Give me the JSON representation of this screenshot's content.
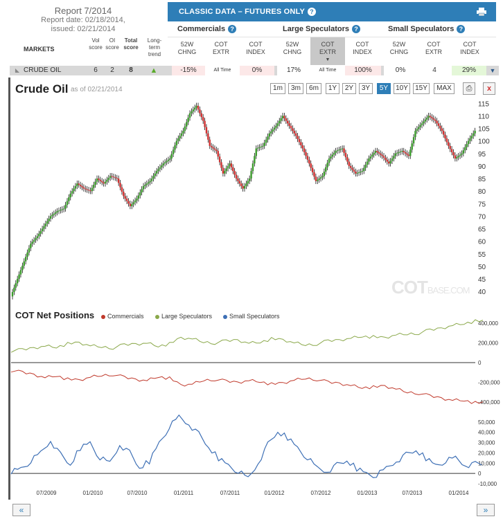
{
  "report": {
    "title": "Report 7/2014",
    "date_line": "Report date: 02/18/2014,",
    "issued_line": "issued: 02/21/2014"
  },
  "header": {
    "classic_title": "CLASSIC DATA – FUTURES ONLY",
    "help_icon": "?"
  },
  "groups": [
    "Commercials",
    "Large Speculators",
    "Small Speculators"
  ],
  "columns": {
    "markets": "MARKETS",
    "vol": [
      "Vol",
      "score"
    ],
    "oi": [
      "OI",
      "score"
    ],
    "total": [
      "Total",
      "score"
    ],
    "trend": [
      "Long-",
      "term",
      "trend"
    ],
    "chng": [
      "52W",
      "CHNG"
    ],
    "extr": [
      "COT",
      "EXTR"
    ],
    "index": [
      "COT",
      "INDEX"
    ]
  },
  "market_row": {
    "name": "CRUDE OIL",
    "vol": "6",
    "oi": "2",
    "total": "8",
    "comm_chng": "-15%",
    "comm_extr": "All Time",
    "comm_index": "0%",
    "ls_chng": "17%",
    "ls_extr": "All Time",
    "ls_index": "100%",
    "ss_chng": "0%",
    "ss_extr": "4",
    "ss_index": "29%"
  },
  "chart": {
    "title": "Crude Oil",
    "asof": "as of 02/21/2014",
    "ranges": [
      "1m",
      "3m",
      "6m",
      "1Y",
      "2Y",
      "3Y",
      "5Y",
      "10Y",
      "15Y",
      "MAX"
    ],
    "active_range": "5Y",
    "close": "x",
    "watermark": "COT",
    "watermark_small": "BASE.COM"
  },
  "cot": {
    "title": "COT Net Positions",
    "legend": [
      "Commercials",
      "Large Speculators",
      "Small Speculators"
    ]
  },
  "colors": {
    "commercials": "#c0392b",
    "large": "#8aa84a",
    "small": "#3d6fb5",
    "up": "#3a9a2a",
    "down": "#d03030"
  },
  "nav": {
    "back": "«",
    "fwd": "»"
  },
  "chart_data": [
    {
      "type": "line",
      "title": "Crude Oil",
      "y_ticks": [
        "40",
        "45",
        "50",
        "55",
        "60",
        "65",
        "70",
        "75",
        "80",
        "85",
        "90",
        "95",
        "100",
        "105",
        "110",
        "115"
      ],
      "ylim": [
        37,
        117
      ],
      "x_labels": [
        "07/2009",
        "01/2010",
        "07/2010",
        "01/2011",
        "07/2011",
        "01/2012",
        "07/2012",
        "01/2013",
        "07/2013",
        "01/2014"
      ],
      "series": [
        {
          "values": [
            38,
            45,
            52,
            59,
            62,
            66,
            70,
            72,
            73,
            79,
            83,
            81,
            80,
            85,
            83,
            86,
            85,
            78,
            74,
            77,
            82,
            84,
            88,
            91,
            93,
            100,
            104,
            111,
            114,
            108,
            98,
            96,
            87,
            91,
            85,
            81,
            85,
            97,
            98,
            103,
            106,
            110,
            106,
            102,
            97,
            91,
            84,
            86,
            93,
            96,
            97,
            90,
            87,
            88,
            93,
            96,
            94,
            91,
            95,
            96,
            94,
            104,
            107,
            110,
            108,
            104,
            98,
            93,
            95,
            100,
            104
          ]
        }
      ]
    },
    {
      "type": "line",
      "title": "COT Net Positions",
      "y_ticks": [
        "400,000",
        "200,000",
        "0",
        "-200,000",
        "-400,000"
      ],
      "ylim": [
        -450000,
        450000
      ],
      "series": [
        {
          "name": "Large Speculators",
          "values": [
            120000,
            130000,
            150000,
            170000,
            160000,
            190000,
            200000,
            170000,
            160000,
            150000,
            180000,
            190000,
            200000,
            170000,
            190000,
            250000,
            240000,
            210000,
            200000,
            220000,
            230000,
            200000,
            210000,
            240000,
            230000,
            200000,
            180000,
            190000,
            220000,
            230000,
            250000,
            270000,
            260000,
            250000,
            280000,
            290000,
            300000,
            330000,
            350000,
            380000,
            400000,
            420000
          ]
        },
        {
          "name": "Commercials",
          "values": [
            -80000,
            -100000,
            -120000,
            -150000,
            -130000,
            -170000,
            -180000,
            -150000,
            -130000,
            -120000,
            -150000,
            -170000,
            -180000,
            -140000,
            -160000,
            -230000,
            -220000,
            -180000,
            -170000,
            -190000,
            -200000,
            -180000,
            -190000,
            -220000,
            -210000,
            -180000,
            -160000,
            -170000,
            -200000,
            -210000,
            -230000,
            -250000,
            -250000,
            -240000,
            -270000,
            -300000,
            -310000,
            -340000,
            -360000,
            -380000,
            -380000,
            -410000
          ]
        }
      ]
    },
    {
      "type": "line",
      "title": "Small Speculators",
      "y_ticks": [
        "50,000",
        "40,000",
        "30,000",
        "20,000",
        "10,000",
        "0",
        "-10,000"
      ],
      "ylim": [
        -12000,
        58000
      ],
      "series": [
        {
          "name": "Small Speculators",
          "values": [
            2000,
            5000,
            12000,
            20000,
            32000,
            18000,
            8000,
            25000,
            30000,
            15000,
            10000,
            28000,
            20000,
            5000,
            12000,
            30000,
            45000,
            55000,
            48000,
            38000,
            25000,
            15000,
            8000,
            2000,
            -5000,
            10000,
            28000,
            40000,
            35000,
            25000,
            15000,
            5000,
            2000,
            8000,
            12000,
            5000,
            0,
            -2000,
            5000,
            12000,
            18000,
            22000,
            15000,
            8000,
            12000,
            15000,
            8000,
            9000
          ]
        }
      ]
    }
  ]
}
